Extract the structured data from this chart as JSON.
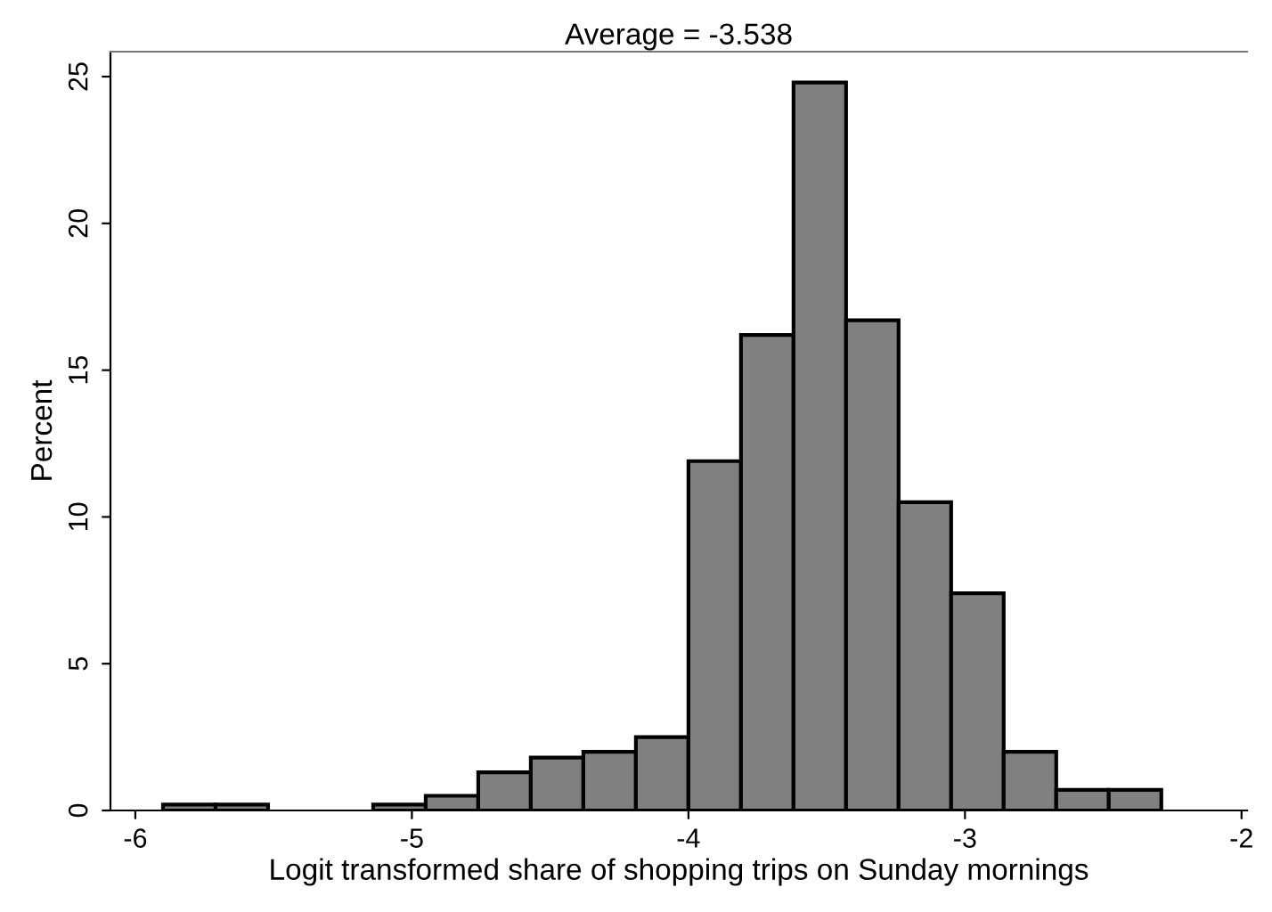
{
  "chart_data": {
    "type": "histogram",
    "title": "Average = -3.538",
    "xlabel": "Logit transformed share of shopping trips on Sunday mornings",
    "ylabel": "Percent",
    "bins": [
      -5.9,
      -5.71,
      -5.52,
      -5.33,
      -5.14,
      -4.95,
      -4.76,
      -4.57,
      -4.38,
      -4.19,
      -4.0,
      -3.81,
      -3.62,
      -3.43,
      -3.24,
      -3.05,
      -2.86,
      -2.67,
      -2.48,
      -2.29
    ],
    "values": [
      0.2,
      0.2,
      0,
      0,
      0.2,
      0.5,
      1.3,
      1.8,
      2.0,
      2.5,
      11.9,
      16.2,
      24.8,
      16.7,
      10.5,
      7.4,
      2.0,
      0.7,
      0.7
    ],
    "color": "#808080",
    "xlim": [
      -6.09,
      -1.98
    ],
    "ylim": [
      0,
      25.85
    ],
    "xticks": [
      -6,
      -5,
      -4,
      -3,
      -2
    ],
    "yticks": [
      0,
      5,
      10,
      15,
      20,
      25
    ],
    "grid": false
  }
}
